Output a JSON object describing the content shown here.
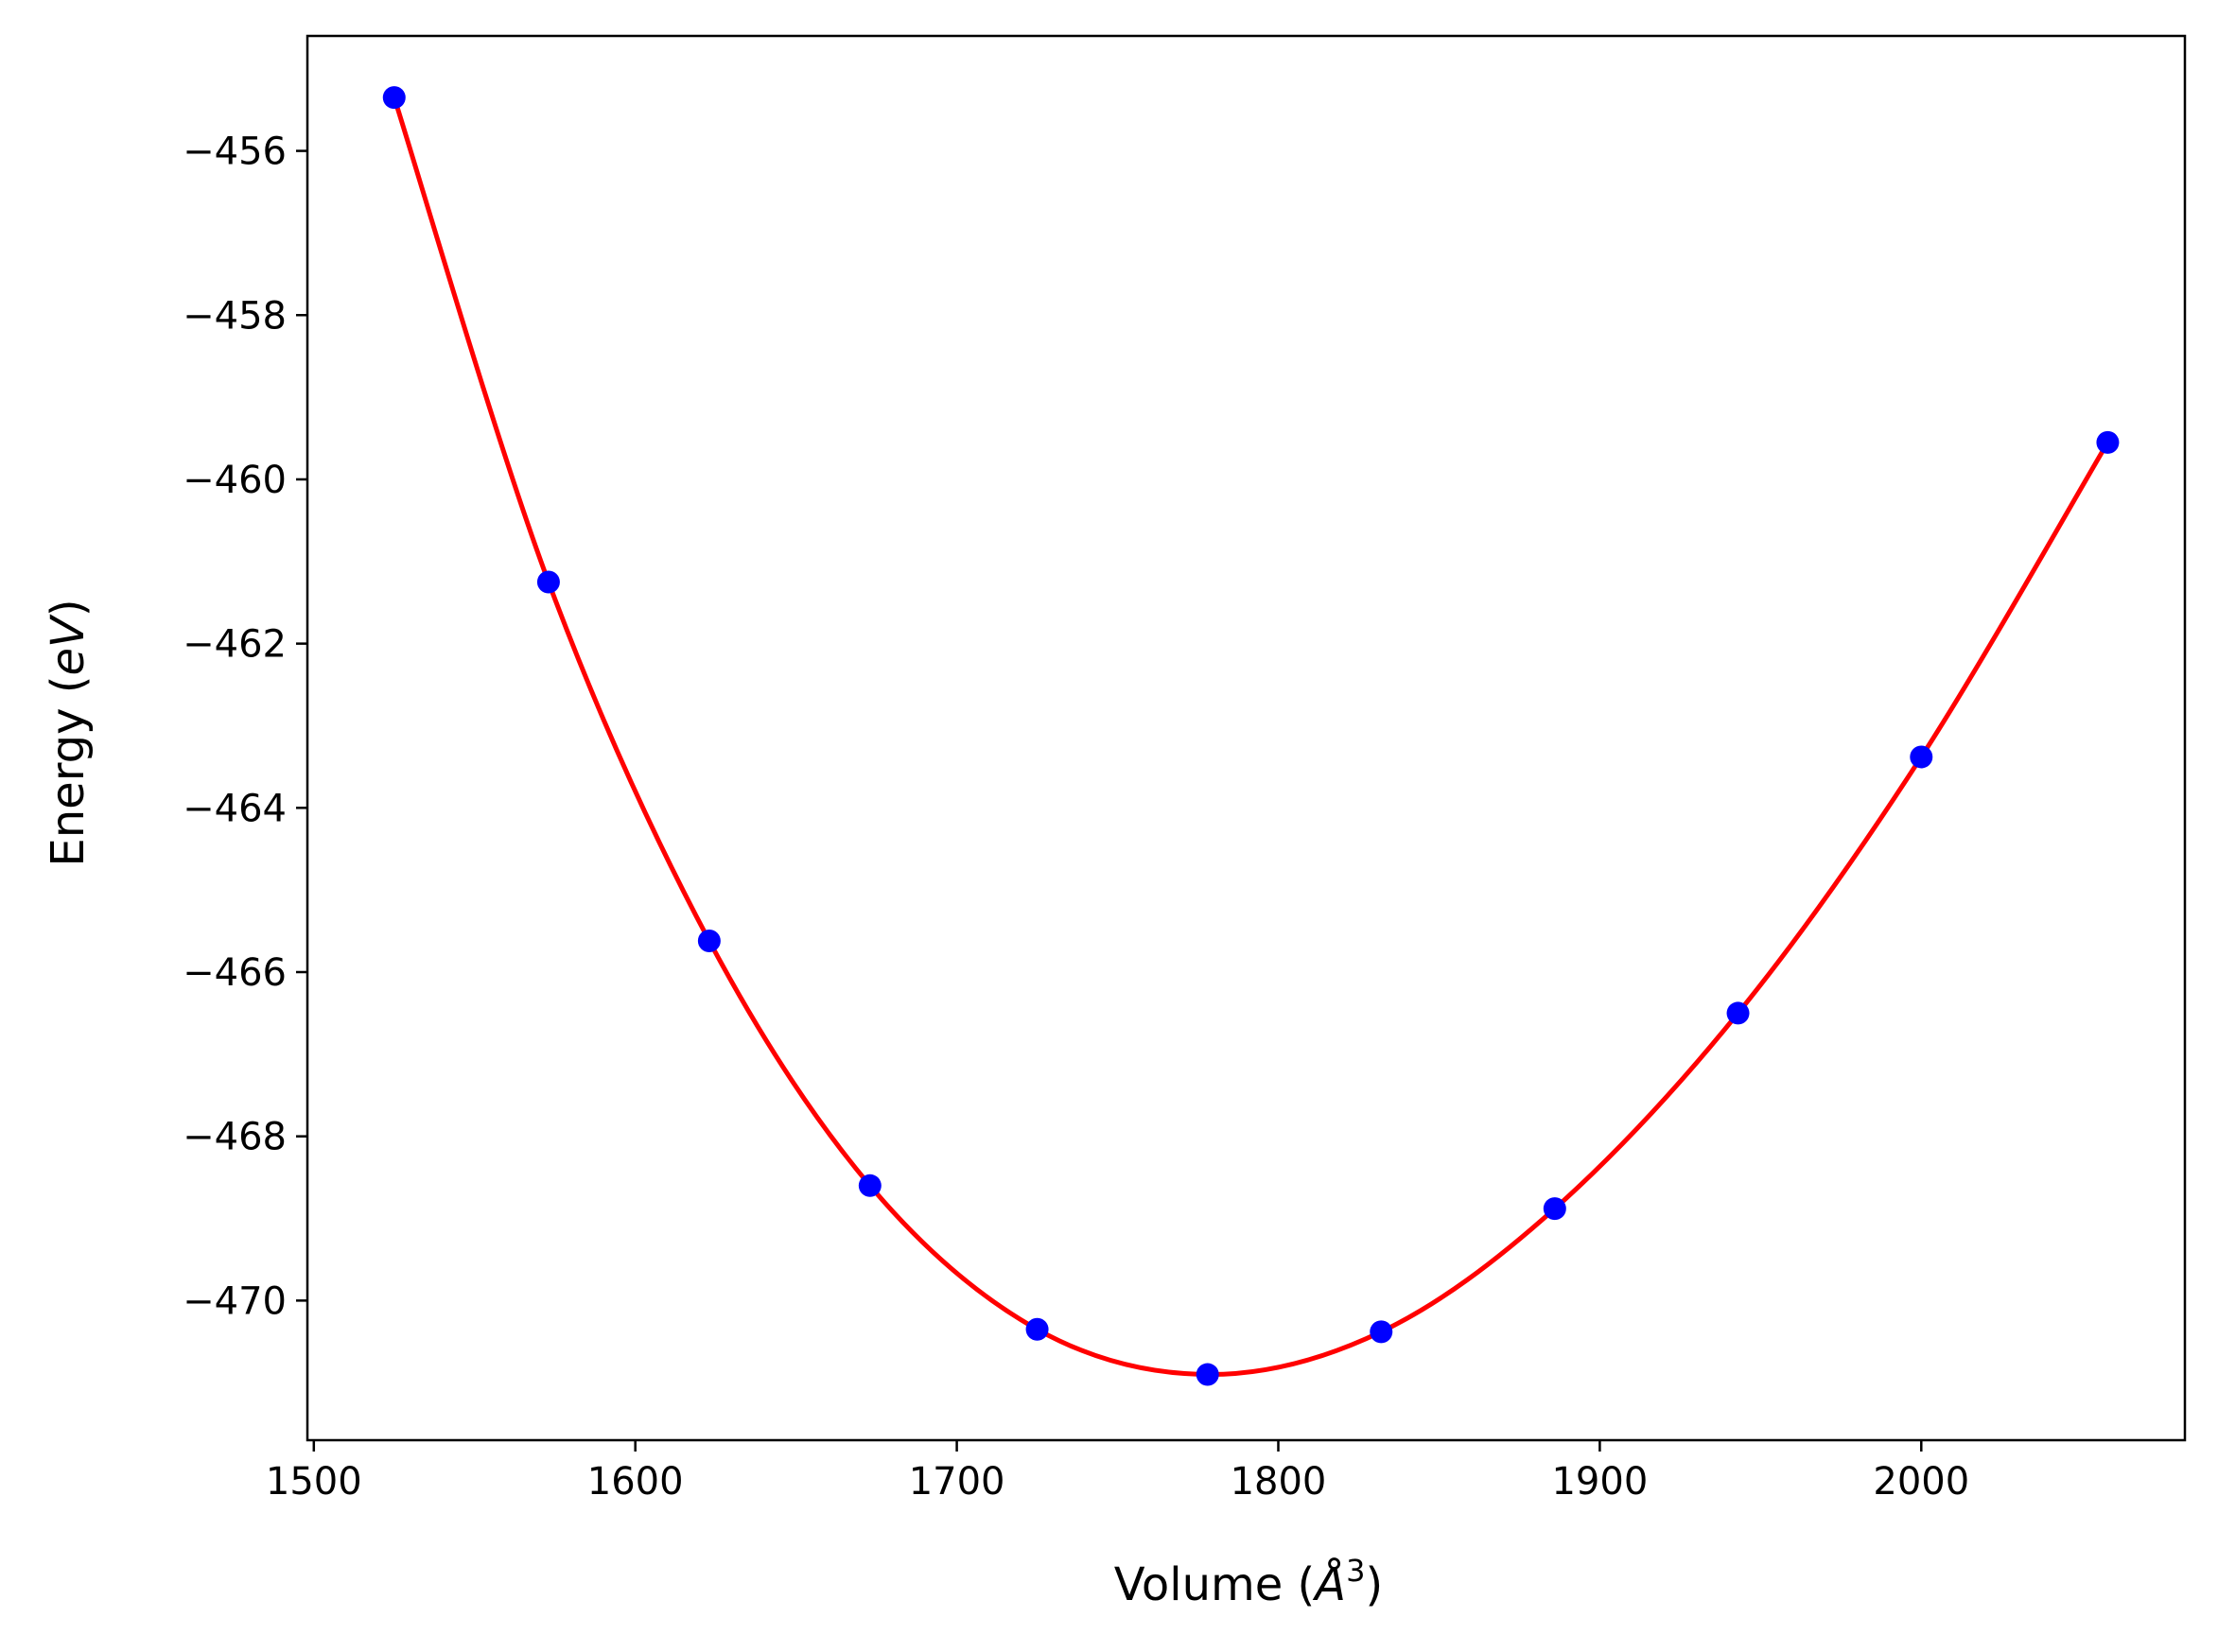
{
  "chart_data": {
    "type": "scatter",
    "title": "",
    "xlabel": {
      "prefix": "Volume (",
      "symbol": "Å",
      "exponent": "3",
      "suffix": ")"
    },
    "ylabel": {
      "prefix": "Energy (",
      "italic": "eV",
      "suffix": ")"
    },
    "xlim": [
      1498,
      2082
    ],
    "ylim": [
      -471.7,
      -454.6
    ],
    "x_ticks": [
      1500,
      1600,
      1700,
      1800,
      1900,
      2000
    ],
    "x_tick_labels": [
      "1500",
      "1600",
      "1700",
      "1800",
      "1900",
      "2000"
    ],
    "y_ticks": [
      -456,
      -458,
      -460,
      -462,
      -464,
      -466,
      -468,
      -470
    ],
    "y_tick_labels": [
      "−456",
      "−458",
      "−460",
      "−462",
      "−464",
      "−466",
      "−468",
      "−470"
    ],
    "grid": false,
    "series": [
      {
        "type": "scatter",
        "color": "#0000ff",
        "x": [
          1525,
          1573,
          1623,
          1673,
          1725,
          1778,
          1832,
          1886,
          1943,
          2000,
          2058
        ],
        "y": [
          -455.35,
          -461.25,
          -465.62,
          -468.6,
          -470.35,
          -470.9,
          -470.38,
          -468.88,
          -466.5,
          -463.38,
          -459.55
        ]
      },
      {
        "type": "line",
        "color": "#ff0000",
        "fit": "smooth curve through points"
      }
    ]
  }
}
